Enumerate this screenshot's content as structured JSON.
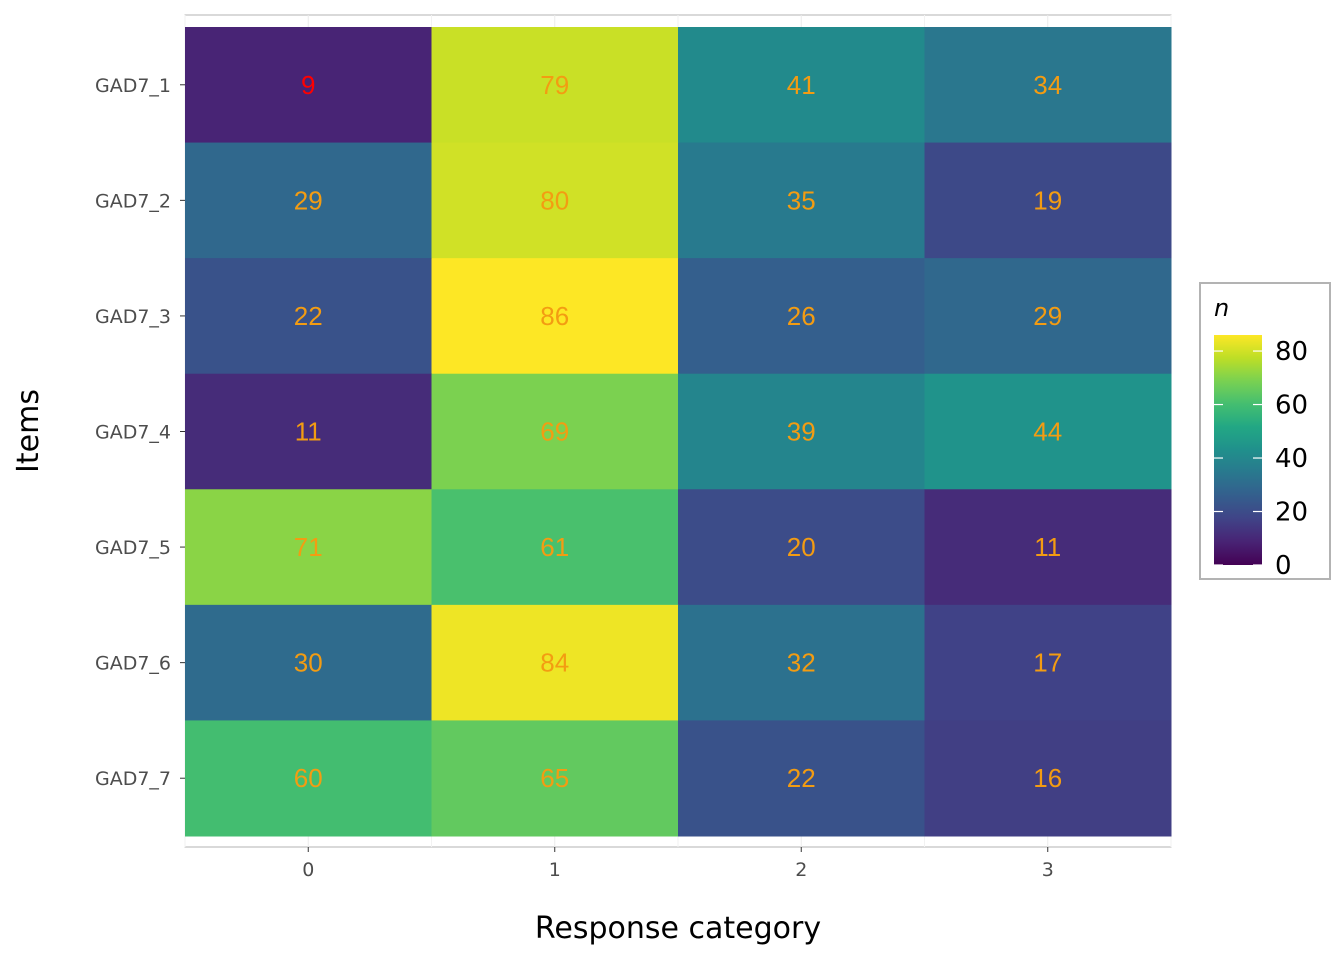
{
  "chart_data": {
    "type": "heatmap",
    "title": "",
    "xlabel": "Response category",
    "ylabel": "Items",
    "x_categories": [
      "0",
      "1",
      "2",
      "3"
    ],
    "y_categories": [
      "GAD7_1",
      "GAD7_2",
      "GAD7_3",
      "GAD7_4",
      "GAD7_5",
      "GAD7_6",
      "GAD7_7"
    ],
    "values": [
      [
        9,
        79,
        41,
        34
      ],
      [
        29,
        80,
        35,
        19
      ],
      [
        22,
        86,
        26,
        29
      ],
      [
        11,
        69,
        39,
        44
      ],
      [
        71,
        61,
        20,
        11
      ],
      [
        30,
        84,
        32,
        17
      ],
      [
        60,
        65,
        22,
        16
      ]
    ],
    "legend": {
      "title": "n",
      "ticks": [
        "0",
        "20",
        "40",
        "60",
        "80"
      ],
      "range": [
        0,
        86
      ],
      "placement": "right"
    },
    "colorscale": "viridis",
    "label_color_default": "#f39c12",
    "label_color_highlight": "#ff0000",
    "highlight_cell": [
      0,
      0
    ],
    "grid": true
  }
}
